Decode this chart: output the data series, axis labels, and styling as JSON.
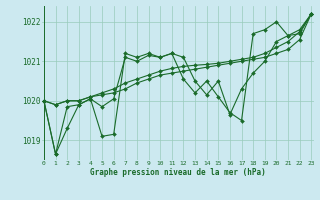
{
  "title": "Graphe pression niveau de la mer (hPa)",
  "bg_color": "#cce9f0",
  "grid_color": "#99ccbb",
  "line_color": "#1a6b2a",
  "x_min": 0,
  "x_max": 23,
  "y_min": 1018.5,
  "y_max": 1022.4,
  "yticks": [
    1019,
    1020,
    1021,
    1022
  ],
  "xticks": [
    0,
    1,
    2,
    3,
    4,
    5,
    6,
    7,
    8,
    9,
    10,
    11,
    12,
    13,
    14,
    15,
    16,
    17,
    18,
    19,
    20,
    21,
    22,
    23
  ],
  "series": [
    [
      1020.0,
      1018.65,
      1019.3,
      1019.9,
      1020.05,
      1019.85,
      1020.05,
      1021.1,
      1021.0,
      1021.15,
      1021.1,
      1021.2,
      1020.55,
      1020.2,
      1020.5,
      1020.1,
      1019.7,
      1019.5,
      1021.7,
      1021.8,
      1022.0,
      1021.65,
      1021.7,
      1022.2
    ],
    [
      1020.0,
      1019.9,
      1020.0,
      1020.0,
      1020.1,
      1020.15,
      1020.2,
      1020.3,
      1020.45,
      1020.55,
      1020.65,
      1020.7,
      1020.75,
      1020.8,
      1020.85,
      1020.9,
      1020.95,
      1021.0,
      1021.05,
      1021.1,
      1021.2,
      1021.3,
      1021.55,
      1022.2
    ],
    [
      1020.0,
      1019.9,
      1020.0,
      1020.0,
      1020.1,
      1020.2,
      1020.3,
      1020.45,
      1020.55,
      1020.65,
      1020.75,
      1020.82,
      1020.87,
      1020.9,
      1020.92,
      1020.95,
      1021.0,
      1021.05,
      1021.1,
      1021.2,
      1021.35,
      1021.5,
      1021.75,
      1022.2
    ],
    [
      1020.0,
      1018.65,
      1019.85,
      1019.9,
      1020.05,
      1019.1,
      1019.15,
      1021.2,
      1021.1,
      1021.2,
      1021.1,
      1021.2,
      1021.1,
      1020.5,
      1020.15,
      1020.5,
      1019.65,
      1020.3,
      1020.7,
      1021.0,
      1021.5,
      1021.65,
      1021.8,
      1022.2
    ]
  ]
}
